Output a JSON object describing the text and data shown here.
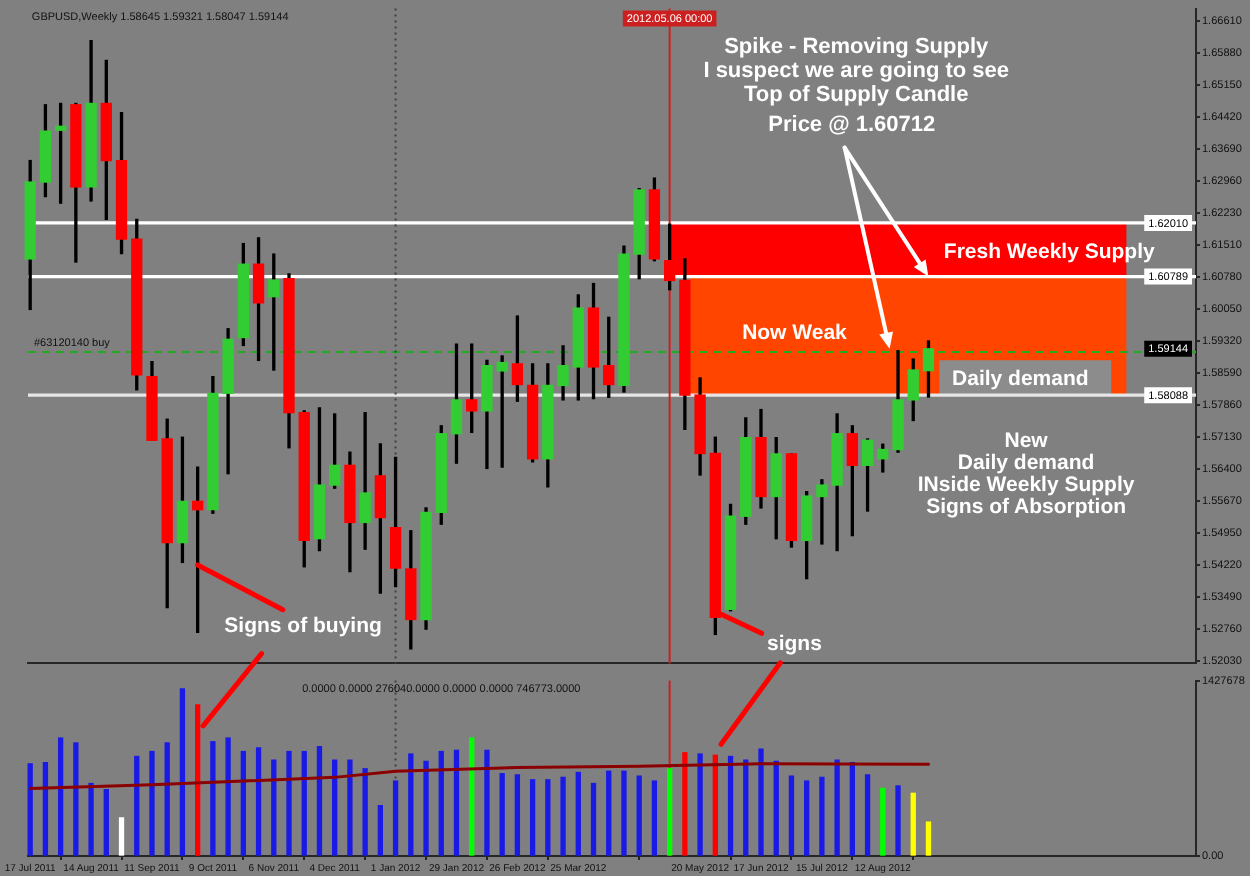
{
  "chart_data": [
    {
      "type": "candlestick",
      "title": "GBPUSD,Weekly 1.58645 1.59321 1.58047 1.59144",
      "x": [
        "2011-07-17",
        "2011-07-24",
        "2011-07-31",
        "2011-08-07",
        "2011-08-14",
        "2011-08-21",
        "2011-08-28",
        "2011-09-04",
        "2011-09-11",
        "2011-09-18",
        "2011-09-25",
        "2011-10-02",
        "2011-10-09",
        "2011-10-16",
        "2011-10-23",
        "2011-10-30",
        "2011-11-06",
        "2011-11-13",
        "2011-11-20",
        "2011-11-27",
        "2011-12-04",
        "2011-12-11",
        "2011-12-18",
        "2011-12-25",
        "2012-01-01",
        "2012-01-08",
        "2012-01-15",
        "2012-01-22",
        "2012-01-29",
        "2012-02-05",
        "2012-02-12",
        "2012-02-19",
        "2012-02-26",
        "2012-03-04",
        "2012-03-11",
        "2012-03-18",
        "2012-03-25",
        "2012-04-01",
        "2012-04-08",
        "2012-04-15",
        "2012-04-22",
        "2012-04-29",
        "2012-05-06",
        "2012-05-13",
        "2012-05-20",
        "2012-05-27",
        "2012-06-03",
        "2012-06-10",
        "2012-06-17",
        "2012-06-24",
        "2012-07-01",
        "2012-07-08",
        "2012-07-15",
        "2012-07-22",
        "2012-07-29",
        "2012-08-05",
        "2012-08-12",
        "2012-08-19",
        "2012-08-26",
        "2012-09-02"
      ],
      "series": [
        {
          "ohlc": [
            [
              1.6119,
              1.6343,
              1.6004,
              1.6294
            ],
            [
              1.6294,
              1.647,
              1.6261,
              1.641
            ],
            [
              1.6412,
              1.6473,
              1.6246,
              1.6421
            ],
            [
              1.647,
              1.6473,
              1.6112,
              1.6283
            ],
            [
              1.6283,
              1.6616,
              1.6251,
              1.6473
            ],
            [
              1.6473,
              1.6571,
              1.6209,
              1.6343
            ],
            [
              1.6343,
              1.6452,
              1.6131,
              1.6164
            ],
            [
              1.6164,
              1.6209,
              1.5821,
              1.5855
            ],
            [
              1.5851,
              1.5885,
              1.5706,
              1.5706
            ],
            [
              1.5709,
              1.5754,
              1.5325,
              1.5473
            ],
            [
              1.5473,
              1.5713,
              1.5428,
              1.5567
            ],
            [
              1.5567,
              1.5645,
              1.5269,
              1.5548
            ],
            [
              1.5548,
              1.5851,
              1.554,
              1.5813
            ],
            [
              1.5813,
              1.596,
              1.563,
              1.5936
            ],
            [
              1.594,
              1.6154,
              1.5922,
              1.6107
            ],
            [
              1.6107,
              1.6167,
              1.5888,
              1.6019
            ],
            [
              1.6033,
              1.613,
              1.5866,
              1.6071
            ],
            [
              1.6074,
              1.6085,
              1.5689,
              1.5769
            ],
            [
              1.5769,
              1.5773,
              1.5418,
              1.5478
            ],
            [
              1.5482,
              1.578,
              1.5455,
              1.5604
            ],
            [
              1.5604,
              1.5766,
              1.5597,
              1.5649
            ],
            [
              1.5649,
              1.5679,
              1.5407,
              1.5519
            ],
            [
              1.5519,
              1.5769,
              1.5458,
              1.5586
            ],
            [
              1.5625,
              1.5698,
              1.5358,
              1.553
            ],
            [
              1.5507,
              1.5667,
              1.5373,
              1.5415
            ],
            [
              1.5413,
              1.55,
              1.5231,
              1.5298
            ],
            [
              1.5298,
              1.5552,
              1.5276,
              1.5542
            ],
            [
              1.5542,
              1.5739,
              1.5515,
              1.5721
            ],
            [
              1.5721,
              1.5925,
              1.5654,
              1.5798
            ],
            [
              1.5798,
              1.5925,
              1.5724,
              1.5773
            ],
            [
              1.5773,
              1.5888,
              1.5642,
              1.5876
            ],
            [
              1.5864,
              1.5898,
              1.5645,
              1.5883
            ],
            [
              1.588,
              1.5989,
              1.5795,
              1.5833
            ],
            [
              1.5831,
              1.588,
              1.5657,
              1.5664
            ],
            [
              1.5664,
              1.588,
              1.56,
              1.5831
            ],
            [
              1.5831,
              1.5921,
              1.5798,
              1.5876
            ],
            [
              1.5873,
              1.6037,
              1.5798,
              1.6007
            ],
            [
              1.6007,
              1.6063,
              1.5801,
              1.5873
            ],
            [
              1.5876,
              1.5986,
              1.5804,
              1.5833
            ],
            [
              1.5831,
              1.6148,
              1.5816,
              1.613
            ],
            [
              1.613,
              1.6279,
              1.6074,
              1.6276
            ],
            [
              1.6276,
              1.6303,
              1.6115,
              1.6119
            ],
            [
              1.6115,
              1.6198,
              1.6049,
              1.607
            ],
            [
              1.607,
              1.6119,
              1.5731,
              1.5809
            ],
            [
              1.5809,
              1.5848,
              1.5627,
              1.5676
            ],
            [
              1.5676,
              1.5713,
              1.5264,
              1.5303
            ],
            [
              1.5321,
              1.556,
              1.5318,
              1.5533
            ],
            [
              1.5533,
              1.5757,
              1.5515,
              1.5712
            ],
            [
              1.5712,
              1.5776,
              1.5552,
              1.5578
            ],
            [
              1.5578,
              1.5712,
              1.5482,
              1.5675
            ],
            [
              1.5675,
              1.5675,
              1.5463,
              1.5478
            ],
            [
              1.5478,
              1.5589,
              1.5391,
              1.5579
            ],
            [
              1.5578,
              1.5616,
              1.547,
              1.5604
            ],
            [
              1.5604,
              1.5766,
              1.5455,
              1.5721
            ],
            [
              1.5721,
              1.5739,
              1.5489,
              1.5649
            ],
            [
              1.5649,
              1.5709,
              1.5545,
              1.5706
            ],
            [
              1.5664,
              1.5697,
              1.5634,
              1.5685
            ],
            [
              1.5685,
              1.591,
              1.5679,
              1.5798
            ],
            [
              1.5798,
              1.5891,
              1.5751,
              1.5866
            ],
            [
              1.58645,
              1.59321,
              1.58047,
              1.59144
            ]
          ],
          "colors": [
            "#32cd32",
            "#32cd32",
            "#32cd32",
            "#ff0000",
            "#32cd32",
            "#ff0000",
            "#ff0000",
            "#ff0000",
            "#ff0000",
            "#ff0000",
            "#32cd32",
            "#ff0000",
            "#32cd32",
            "#32cd32",
            "#32cd32",
            "#ff0000",
            "#32cd32",
            "#ff0000",
            "#ff0000",
            "#32cd32",
            "#32cd32",
            "#ff0000",
            "#32cd32",
            "#ff0000",
            "#ff0000",
            "#ff0000",
            "#32cd32",
            "#32cd32",
            "#32cd32",
            "#ff0000",
            "#32cd32",
            "#32cd32",
            "#ff0000",
            "#ff0000",
            "#32cd32",
            "#32cd32",
            "#32cd32",
            "#ff0000",
            "#ff0000",
            "#32cd32",
            "#32cd32",
            "#ff0000",
            "#ff0000",
            "#ff0000",
            "#ff0000",
            "#ff0000",
            "#32cd32",
            "#32cd32",
            "#ff0000",
            "#32cd32",
            "#ff0000",
            "#32cd32",
            "#32cd32",
            "#32cd32",
            "#ff0000",
            "#32cd32",
            "#32cd32",
            "#32cd32",
            "#32cd32",
            "#32cd32"
          ]
        },
        {
          "type": "line",
          "color": "#ff0000",
          "x": [
            "2012-05-06",
            "2012-12-02"
          ],
          "values": [
            null,
            null
          ],
          "lower": [
            1.6079,
            1.6079
          ],
          "upper": [
            1.6201,
            1.6201
          ]
        },
        {
          "type": "line",
          "color": "#ff4500",
          "x": [
            "2012-05-15",
            "2012-12-02"
          ],
          "values": [
            null,
            null
          ],
          "lower": [
            1.5809,
            1.5809
          ],
          "upper": [
            1.6079,
            1.6079
          ]
        },
        {
          "type": "line",
          "color": "#8c8c8c",
          "x": [
            "2012-09-07",
            "2012-11-25"
          ],
          "values": [
            null,
            null
          ],
          "lower": [
            1.5809,
            1.5809
          ],
          "upper": [
            1.5888,
            1.5888
          ]
        }
      ],
      "xlim": [
        "2011-07-16",
        "2013-01-03"
      ],
      "ylim": [
        1.5198,
        1.6689
      ],
      "yticks": [
        {
          "value": 1.6661,
          "label": "1.66610"
        },
        {
          "value": 1.6588,
          "label": "1.65880"
        },
        {
          "value": 1.6515,
          "label": "1.65150"
        },
        {
          "value": 1.6442,
          "label": "1.64420"
        },
        {
          "value": 1.6369,
          "label": "1.63690"
        },
        {
          "value": 1.6296,
          "label": "1.62960"
        },
        {
          "value": 1.6223,
          "label": "1.62230"
        },
        {
          "value": 1.6151,
          "label": "1.61510"
        },
        {
          "value": 1.6078,
          "label": "1.60780"
        },
        {
          "value": 1.6005,
          "label": "1.60050"
        },
        {
          "value": 1.5932,
          "label": "1.59320"
        },
        {
          "value": 1.5859,
          "label": "1.58590"
        },
        {
          "value": 1.5786,
          "label": "1.57860"
        },
        {
          "value": 1.5713,
          "label": "1.57130"
        },
        {
          "value": 1.564,
          "label": "1.56400"
        },
        {
          "value": 1.5567,
          "label": "1.55670"
        },
        {
          "value": 1.5495,
          "label": "1.54950"
        },
        {
          "value": 1.5422,
          "label": "1.54220"
        },
        {
          "value": 1.5349,
          "label": "1.53490"
        },
        {
          "value": 1.5276,
          "label": "1.52760"
        },
        {
          "value": 1.5203,
          "label": "1.52030"
        }
      ],
      "tick_labels": "y",
      "ref_lines": [
        {
          "axis": "y",
          "value": 1.6201,
          "label": "1.62010",
          "color": "#ffffff"
        },
        {
          "axis": "y",
          "value": 1.60789,
          "label": "1.60789",
          "color": "#ffffff"
        },
        {
          "axis": "y",
          "value": 1.58088,
          "label": "1.58088",
          "color": "#e6e6e6"
        },
        {
          "axis": "y",
          "value": 1.5907,
          "label": "#63120140 buy",
          "color": "#22aa22",
          "line_style": "dashed"
        },
        {
          "axis": "x",
          "value": "2012-01-01",
          "color": "#404040",
          "line_style": "dotted"
        },
        {
          "axis": "x",
          "value": "2012-05-06",
          "label": "2012.05.06 00:00",
          "color": "#cc2020"
        }
      ],
      "annotations": [
        "Spike - Removing Supply\nI suspect we are going to see\nTop of Supply Candle",
        {
          "text": "Price @ 1.60712",
          "x": "2012-09-02",
          "y": 1.60789
        },
        "New\nDaily demand\nINside Weekly Supply\nSigns of Absorption",
        {
          "text": "Signs of buying",
          "x": "2011-10-02",
          "y": 1.5422
        },
        {
          "text": "signs",
          "x": "2012-05-27",
          "y": 1.5316
        },
        {
          "text": "1.59144",
          "y": 1.59144
        },
        "Fresh Weekly Supply",
        "Now Weak",
        "Daily demand"
      ]
    },
    {
      "type": "bar",
      "title": "0.0000 0.0000 276040.0000 0.0000 0.0000 746773.0000",
      "x": [
        "2011-07-17",
        "2011-07-24",
        "2011-07-31",
        "2011-08-07",
        "2011-08-14",
        "2011-08-21",
        "2011-08-28",
        "2011-09-04",
        "2011-09-11",
        "2011-09-18",
        "2011-09-25",
        "2011-10-02",
        "2011-10-09",
        "2011-10-16",
        "2011-10-23",
        "2011-10-30",
        "2011-11-06",
        "2011-11-13",
        "2011-11-20",
        "2011-11-27",
        "2011-12-04",
        "2011-12-11",
        "2011-12-18",
        "2011-12-25",
        "2012-01-01",
        "2012-01-08",
        "2012-01-15",
        "2012-01-22",
        "2012-01-29",
        "2012-02-05",
        "2012-02-12",
        "2012-02-19",
        "2012-02-26",
        "2012-03-04",
        "2012-03-11",
        "2012-03-18",
        "2012-03-25",
        "2012-04-01",
        "2012-04-08",
        "2012-04-15",
        "2012-04-22",
        "2012-04-29",
        "2012-05-06",
        "2012-05-13",
        "2012-05-20",
        "2012-05-27",
        "2012-06-03",
        "2012-06-10",
        "2012-06-17",
        "2012-06-24",
        "2012-07-01",
        "2012-07-08",
        "2012-07-15",
        "2012-07-22",
        "2012-07-29",
        "2012-08-05",
        "2012-08-12",
        "2012-08-19",
        "2012-08-26",
        "2012-09-02"
      ],
      "series": [
        {
          "values": [
            750000,
            760000,
            960000,
            920000,
            590000,
            540000,
            310000,
            810000,
            850000,
            920000,
            1360000,
            1230000,
            930000,
            960000,
            850000,
            880000,
            780000,
            850000,
            850000,
            890000,
            780000,
            780000,
            710000,
            410000,
            610000,
            830000,
            770000,
            850000,
            860000,
            960000,
            860000,
            670000,
            660000,
            620000,
            620000,
            640000,
            680000,
            590000,
            690000,
            690000,
            650000,
            610000,
            710000,
            840000,
            830000,
            820000,
            810000,
            780000,
            870000,
            770000,
            650000,
            610000,
            640000,
            780000,
            760000,
            660000,
            550000,
            570000,
            510000,
            276040
          ],
          "colors": [
            "#1a1ae6",
            "#1a1ae6",
            "#1a1ae6",
            "#1a1ae6",
            "#1a1ae6",
            "#1a1ae6",
            "#ffffff",
            "#1a1ae6",
            "#1a1ae6",
            "#1a1ae6",
            "#1a1ae6",
            "#ff0000",
            "#1a1ae6",
            "#1a1ae6",
            "#1a1ae6",
            "#1a1ae6",
            "#1a1ae6",
            "#1a1ae6",
            "#1a1ae6",
            "#1a1ae6",
            "#1a1ae6",
            "#1a1ae6",
            "#1a1ae6",
            "#1a1ae6",
            "#1a1ae6",
            "#1a1ae6",
            "#1a1ae6",
            "#1a1ae6",
            "#1a1ae6",
            "#00ff00",
            "#1a1ae6",
            "#1a1ae6",
            "#1a1ae6",
            "#1a1ae6",
            "#1a1ae6",
            "#1a1ae6",
            "#1a1ae6",
            "#1a1ae6",
            "#1a1ae6",
            "#1a1ae6",
            "#1a1ae6",
            "#1a1ae6",
            "#00ff00",
            "#ff0000",
            "#1a1ae6",
            "#ff0000",
            "#1a1ae6",
            "#1a1ae6",
            "#1a1ae6",
            "#1a1ae6",
            "#1a1ae6",
            "#1a1ae6",
            "#1a1ae6",
            "#1a1ae6",
            "#1a1ae6",
            "#1a1ae6",
            "#00ff00",
            "#1a1ae6",
            "#ffff00",
            "#ffff00"
          ]
        },
        {
          "type": "line",
          "color": "#8b0000",
          "x": [
            "2011-07-17",
            "2011-09-11",
            "2011-12-04",
            "2012-01-01",
            "2012-02-26",
            "2012-04-22",
            "2012-06-17",
            "2012-09-02"
          ],
          "values": [
            550000,
            580000,
            640000,
            690000,
            720000,
            730000,
            750000,
            746773
          ]
        }
      ],
      "xlim": [
        "2011-07-16",
        "2013-01-03"
      ],
      "xticks": [
        {
          "value": "2011-07-17",
          "label": "17 Jul 2011"
        },
        {
          "value": "2011-08-14",
          "label": "14 Aug 2011"
        },
        {
          "value": "2011-09-11",
          "label": "11 Sep 2011"
        },
        {
          "value": "2011-10-09",
          "label": "9 Oct 2011"
        },
        {
          "value": "2011-11-06",
          "label": "6 Nov 2011"
        },
        {
          "value": "2011-12-04",
          "label": "4 Dec 2011"
        },
        {
          "value": "2012-01-01",
          "label": "1 Jan 2012"
        },
        {
          "value": "2012-01-29",
          "label": "29 Jan 2012"
        },
        {
          "value": "2012-02-26",
          "label": "26 Feb 2012"
        },
        {
          "value": "2012-03-25",
          "label": "25 Mar 2012"
        },
        {
          "value": "2012-05-20",
          "label": "20 May 2012"
        },
        {
          "value": "2012-06-17",
          "label": "17 Jun 2012"
        },
        {
          "value": "2012-07-15",
          "label": "15 Jul 2012"
        },
        {
          "value": "2012-08-12",
          "label": "12 Aug 2012"
        }
      ],
      "ylim": [
        0,
        1427678
      ],
      "yticks": [
        {
          "value": 0,
          "label": "0.00"
        },
        {
          "value": 1427678,
          "label": "1427678"
        }
      ],
      "ref_lines": [
        {
          "axis": "x",
          "value": "2012-01-01",
          "color": "#404040",
          "line_style": "dotted"
        },
        {
          "axis": "x",
          "value": "2012-05-06",
          "color": "#cc2020"
        }
      ]
    }
  ]
}
